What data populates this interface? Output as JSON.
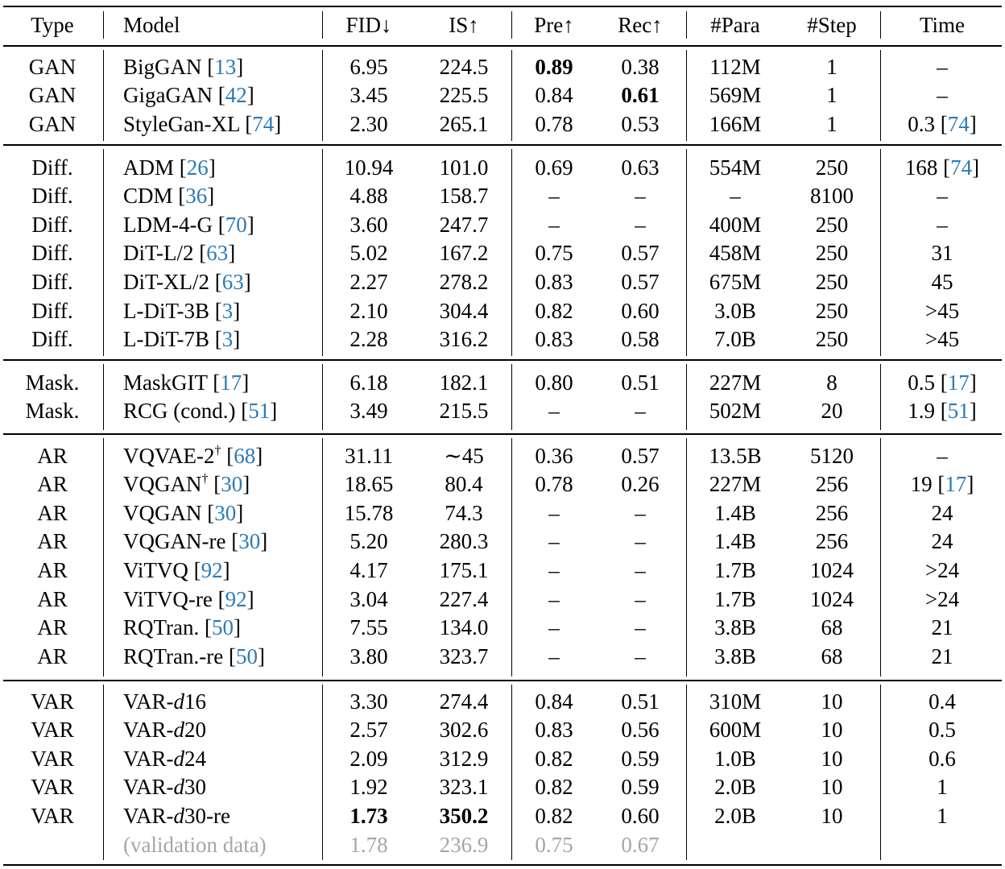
{
  "header": [
    "Type",
    "Model",
    "FID↓",
    "IS↑",
    "Pre↑",
    "Rec↑",
    "#Para",
    "#Step",
    "Time"
  ],
  "groups": [
    {
      "rows": [
        {
          "type": "GAN",
          "model": "BigGAN",
          "ref": "13",
          "fid": "6.95",
          "is": "224.5",
          "pre": "0.89",
          "rec": "0.38",
          "para": "112M",
          "step": "1",
          "time": "–",
          "bold": [
            "pre"
          ]
        },
        {
          "type": "GAN",
          "model": "GigaGAN",
          "ref": "42",
          "fid": "3.45",
          "is": "225.5",
          "pre": "0.84",
          "rec": "0.61",
          "para": "569M",
          "step": "1",
          "time": "–",
          "bold": [
            "rec"
          ]
        },
        {
          "type": "GAN",
          "model": "StyleGan-XL",
          "ref": "74",
          "fid": "2.30",
          "is": "265.1",
          "pre": "0.78",
          "rec": "0.53",
          "para": "166M",
          "step": "1",
          "time": "0.3",
          "time_ref": "74"
        }
      ]
    },
    {
      "rows": [
        {
          "type": "Diff.",
          "model": "ADM",
          "ref": "26",
          "fid": "10.94",
          "is": "101.0",
          "pre": "0.69",
          "rec": "0.63",
          "para": "554M",
          "step": "250",
          "time": "168",
          "time_ref": "74"
        },
        {
          "type": "Diff.",
          "model": "CDM",
          "ref": "36",
          "fid": "4.88",
          "is": "158.7",
          "pre": "–",
          "rec": "–",
          "para": "–",
          "step": "8100",
          "time": "–"
        },
        {
          "type": "Diff.",
          "model": "LDM-4-G",
          "ref": "70",
          "fid": "3.60",
          "is": "247.7",
          "pre": "–",
          "rec": "–",
          "para": "400M",
          "step": "250",
          "time": "–"
        },
        {
          "type": "Diff.",
          "model": "DiT-L/2",
          "ref": "63",
          "fid": "5.02",
          "is": "167.2",
          "pre": "0.75",
          "rec": "0.57",
          "para": "458M",
          "step": "250",
          "time": "31"
        },
        {
          "type": "Diff.",
          "model": "DiT-XL/2",
          "ref": "63",
          "fid": "2.27",
          "is": "278.2",
          "pre": "0.83",
          "rec": "0.57",
          "para": "675M",
          "step": "250",
          "time": "45"
        },
        {
          "type": "Diff.",
          "model": "L-DiT-3B",
          "ref": "3",
          "fid": "2.10",
          "is": "304.4",
          "pre": "0.82",
          "rec": "0.60",
          "para": "3.0B",
          "step": "250",
          "time": ">45"
        },
        {
          "type": "Diff.",
          "model": "L-DiT-7B",
          "ref": "3",
          "fid": "2.28",
          "is": "316.2",
          "pre": "0.83",
          "rec": "0.58",
          "para": "7.0B",
          "step": "250",
          "time": ">45"
        }
      ]
    },
    {
      "rows": [
        {
          "type": "Mask.",
          "model": "MaskGIT",
          "ref": "17",
          "fid": "6.18",
          "is": "182.1",
          "pre": "0.80",
          "rec": "0.51",
          "para": "227M",
          "step": "8",
          "time": "0.5",
          "time_ref": "17"
        },
        {
          "type": "Mask.",
          "model": "RCG (cond.)",
          "ref": "51",
          "fid": "3.49",
          "is": "215.5",
          "pre": "–",
          "rec": "–",
          "para": "502M",
          "step": "20",
          "time": "1.9",
          "time_ref": "51"
        }
      ]
    },
    {
      "rows": [
        {
          "type": "AR",
          "model": "VQVAE-2",
          "sup": "†",
          "ref": "68",
          "fid": "31.11",
          "is": "∼45",
          "pre": "0.36",
          "rec": "0.57",
          "para": "13.5B",
          "step": "5120",
          "time": "–"
        },
        {
          "type": "AR",
          "model": "VQGAN",
          "sup": "†",
          "ref": "30",
          "fid": "18.65",
          "is": "80.4",
          "pre": "0.78",
          "rec": "0.26",
          "para": "227M",
          "step": "256",
          "time": "19",
          "time_ref": "17"
        },
        {
          "type": "AR",
          "model": "VQGAN",
          "ref": "30",
          "fid": "15.78",
          "is": "74.3",
          "pre": "–",
          "rec": "–",
          "para": "1.4B",
          "step": "256",
          "time": "24"
        },
        {
          "type": "AR",
          "model": "VQGAN-re",
          "ref": "30",
          "fid": "5.20",
          "is": "280.3",
          "pre": "–",
          "rec": "–",
          "para": "1.4B",
          "step": "256",
          "time": "24"
        },
        {
          "type": "AR",
          "model": "ViTVQ",
          "ref": "92",
          "fid": "4.17",
          "is": "175.1",
          "pre": "–",
          "rec": "–",
          "para": "1.7B",
          "step": "1024",
          "time": ">24"
        },
        {
          "type": "AR",
          "model": "ViTVQ-re",
          "ref": "92",
          "fid": "3.04",
          "is": "227.4",
          "pre": "–",
          "rec": "–",
          "para": "1.7B",
          "step": "1024",
          "time": ">24"
        },
        {
          "type": "AR",
          "model": "RQTran.",
          "ref": "50",
          "fid": "7.55",
          "is": "134.0",
          "pre": "–",
          "rec": "–",
          "para": "3.8B",
          "step": "68",
          "time": "21"
        },
        {
          "type": "AR",
          "model": "RQTran.-re",
          "ref": "50",
          "fid": "3.80",
          "is": "323.7",
          "pre": "–",
          "rec": "–",
          "para": "3.8B",
          "step": "68",
          "time": "21"
        }
      ]
    },
    {
      "rows": [
        {
          "type": "VAR",
          "model_pre": "VAR-",
          "model_it": "d",
          "model_post": "16",
          "fid": "3.30",
          "is": "274.4",
          "pre": "0.84",
          "rec": "0.51",
          "para": "310M",
          "step": "10",
          "time": "0.4"
        },
        {
          "type": "VAR",
          "model_pre": "VAR-",
          "model_it": "d",
          "model_post": "20",
          "fid": "2.57",
          "is": "302.6",
          "pre": "0.83",
          "rec": "0.56",
          "para": "600M",
          "step": "10",
          "time": "0.5"
        },
        {
          "type": "VAR",
          "model_pre": "VAR-",
          "model_it": "d",
          "model_post": "24",
          "fid": "2.09",
          "is": "312.9",
          "pre": "0.82",
          "rec": "0.59",
          "para": "1.0B",
          "step": "10",
          "time": "0.6"
        },
        {
          "type": "VAR",
          "model_pre": "VAR-",
          "model_it": "d",
          "model_post": "30",
          "fid": "1.92",
          "is": "323.1",
          "pre": "0.82",
          "rec": "0.59",
          "para": "2.0B",
          "step": "10",
          "time": "1"
        },
        {
          "type": "VAR",
          "model_pre": "VAR-",
          "model_it": "d",
          "model_post": "30-re",
          "fid": "1.73",
          "is": "350.2",
          "pre": "0.82",
          "rec": "0.60",
          "para": "2.0B",
          "step": "10",
          "time": "1",
          "bold": [
            "fid",
            "is"
          ]
        },
        {
          "type": "",
          "model": "(validation data)",
          "fid": "1.78",
          "is": "236.9",
          "pre": "0.75",
          "rec": "0.67",
          "para": "",
          "step": "",
          "time": "",
          "gray": true
        }
      ]
    }
  ]
}
